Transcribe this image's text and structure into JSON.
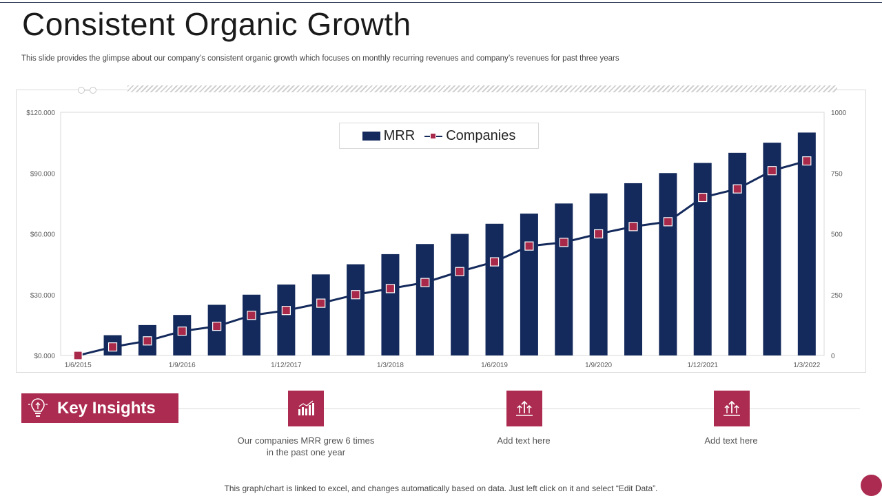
{
  "page": {
    "title": "Consistent Organic Growth",
    "subtitle": "This slide provides the glimpse about our company’s consistent organic growth which focuses on monthly recurring revenues and company’s revenues for past three years",
    "footer": "This graph/chart is linked to excel, and changes automatically based on data. Just left click on it and select “Edit Data”."
  },
  "colors": {
    "navy": "#142a5c",
    "crimson": "#ac2b50",
    "marker": "#a8294a"
  },
  "chart_data": {
    "type": "bar",
    "title": "",
    "x_tick_labels": [
      "1/6/2015",
      "1/9/2016",
      "1/12/2017",
      "1/3/2018",
      "1/6/2019",
      "1/9/2020",
      "1/12/2021",
      "1/3/2022"
    ],
    "x_tick_indices": [
      0,
      3,
      6,
      9,
      12,
      15,
      18,
      21
    ],
    "category_count": 22,
    "y_left": {
      "ticks": [
        "$0.000",
        "$30.000",
        "$60.000",
        "$90.000",
        "$120.000"
      ],
      "min": 0,
      "max": 120000
    },
    "y_right": {
      "ticks": [
        "0",
        "250",
        "500",
        "750",
        "1000"
      ],
      "min": 0,
      "max": 1000
    },
    "legend_position": "top-center",
    "series": [
      {
        "name": "MRR",
        "type": "bar",
        "axis": "left",
        "values": [
          0,
          10000,
          15000,
          20000,
          25000,
          30000,
          35000,
          40000,
          45000,
          50000,
          55000,
          60000,
          65000,
          70000,
          75000,
          80000,
          85000,
          90000,
          95000,
          100000,
          105000,
          110000
        ]
      },
      {
        "name": "Companies",
        "type": "line",
        "axis": "right",
        "values": [
          0,
          35,
          60,
          100,
          120,
          165,
          185,
          215,
          250,
          275,
          300,
          345,
          385,
          450,
          465,
          500,
          530,
          550,
          650,
          685,
          760,
          800
        ]
      }
    ]
  },
  "insights": {
    "heading": "Key Insights",
    "items": [
      {
        "icon": "bar-chart-icon",
        "text": "Our companies MRR grew 6 times in the past one year"
      },
      {
        "icon": "growth-arrows-icon",
        "text": "Add text here"
      },
      {
        "icon": "growth-arrows-icon",
        "text": "Add text here"
      }
    ]
  }
}
